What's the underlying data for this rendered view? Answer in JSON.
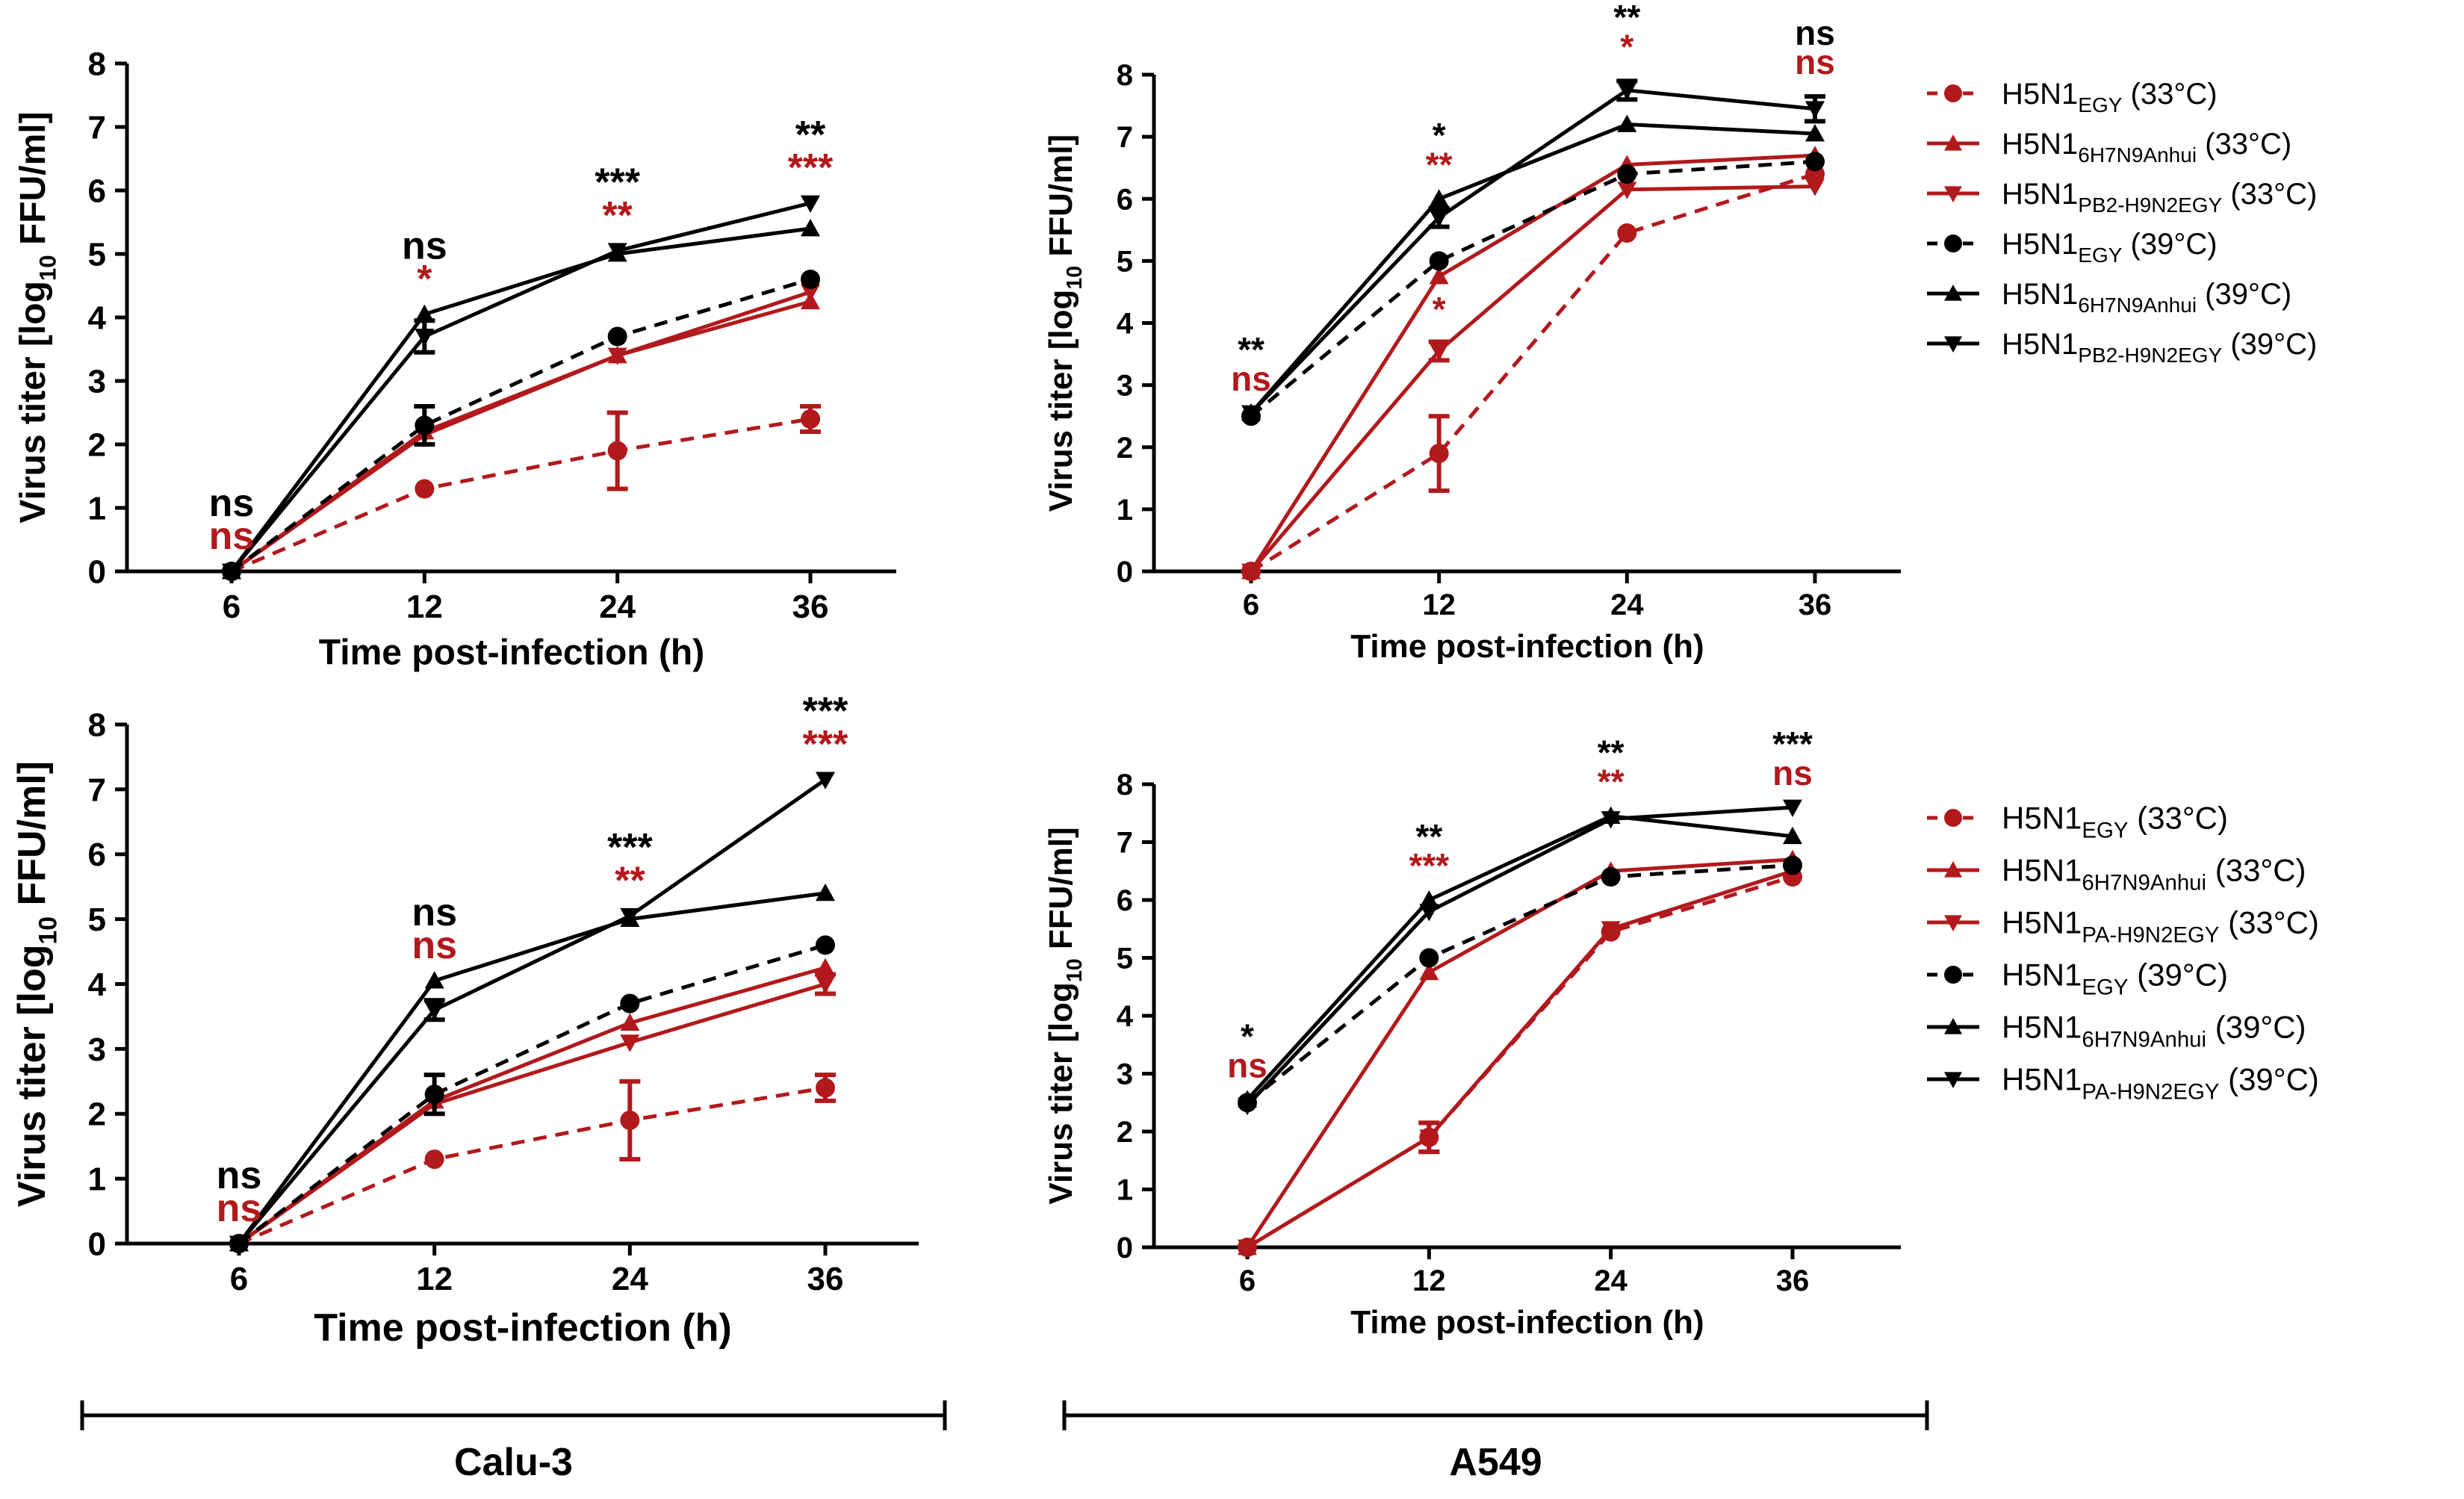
{
  "colors": {
    "red": "#b2191c",
    "black": "#000000"
  },
  "chart_data": [
    {
      "type": "line",
      "name": "Calu-3 PB2",
      "xlabel": "Time post-infection (h)",
      "ylabel_main": "Virus titer [log",
      "ylabel_sub": "10",
      "ylabel_tail": " FFU/ml]",
      "ylim": [
        0,
        8
      ],
      "yticks": [
        "0",
        "1",
        "2",
        "3",
        "4",
        "5",
        "6",
        "7",
        "8"
      ],
      "categories": [
        "6",
        "12",
        "24",
        "36"
      ],
      "series": [
        {
          "name": "H5N1 EGY (33°C)",
          "color": "red",
          "dashed": true,
          "marker": "circle",
          "values": [
            0,
            1.3,
            1.9,
            2.4
          ],
          "err": [
            0,
            0,
            0.6,
            0.2
          ]
        },
        {
          "name": "H5N1 6H7N9Anhui (33°C)",
          "color": "red",
          "dashed": false,
          "marker": "triangle-up",
          "values": [
            0,
            2.2,
            3.4,
            4.25
          ],
          "err": [
            0,
            0,
            0,
            0
          ]
        },
        {
          "name": "H5N1 PB2-H9N2EGY (33°C)",
          "color": "red",
          "dashed": false,
          "marker": "triangle-down",
          "values": [
            0,
            2.15,
            3.4,
            4.4
          ],
          "err": [
            0,
            0,
            0,
            0
          ]
        },
        {
          "name": "H5N1 EGY (39°C)",
          "color": "black",
          "dashed": true,
          "marker": "circle",
          "values": [
            0,
            2.3,
            3.7,
            4.6
          ],
          "err": [
            0,
            0.3,
            0,
            0
          ]
        },
        {
          "name": "H5N1 6H7N9Anhui (39°C)",
          "color": "black",
          "dashed": false,
          "marker": "triangle-up",
          "values": [
            0,
            4.05,
            5.0,
            5.4
          ],
          "err": [
            0,
            0,
            0,
            0
          ]
        },
        {
          "name": "H5N1 PB2-H9N2EGY (39°C)",
          "color": "black",
          "dashed": false,
          "marker": "triangle-down",
          "values": [
            0,
            3.7,
            5.05,
            5.8
          ],
          "err": [
            0,
            0.25,
            0,
            0
          ]
        }
      ],
      "annotations": [
        {
          "x": "6",
          "black": "ns",
          "red": "ns"
        },
        {
          "x": "12",
          "black": "ns",
          "red": "*"
        },
        {
          "x": "24",
          "black": "***",
          "red": "**"
        },
        {
          "x": "36",
          "black": "**",
          "red": "***"
        }
      ]
    },
    {
      "type": "line",
      "name": "A549 PB2",
      "xlabel": "Time post-infection (h)",
      "ylabel_main": "Virus titer [log",
      "ylabel_sub": "10",
      "ylabel_tail": " FFU/ml]",
      "ylim": [
        0,
        8
      ],
      "yticks": [
        "0",
        "1",
        "2",
        "3",
        "4",
        "5",
        "6",
        "7",
        "8"
      ],
      "categories": [
        "6",
        "12",
        "24",
        "36"
      ],
      "series": [
        {
          "name": "H5N1 EGY (33°C)",
          "color": "red",
          "dashed": true,
          "marker": "circle",
          "values": [
            0,
            1.9,
            5.45,
            6.4
          ],
          "err": [
            0,
            0.6,
            0,
            0
          ]
        },
        {
          "name": "H5N1 6H7N9Anhui (33°C)",
          "color": "red",
          "dashed": false,
          "marker": "triangle-up",
          "values": [
            0,
            4.75,
            6.55,
            6.7
          ],
          "err": [
            0,
            0,
            0,
            0
          ]
        },
        {
          "name": "H5N1 PB2-H9N2EGY (33°C)",
          "color": "red",
          "dashed": false,
          "marker": "triangle-down",
          "values": [
            0,
            3.55,
            6.15,
            6.2
          ],
          "err": [
            0,
            0.15,
            0,
            0
          ]
        },
        {
          "name": "H5N1 EGY (39°C)",
          "color": "black",
          "dashed": true,
          "marker": "circle",
          "values": [
            2.5,
            5.0,
            6.4,
            6.6
          ],
          "err": [
            0,
            0,
            0,
            0
          ]
        },
        {
          "name": "H5N1 6H7N9Anhui (39°C)",
          "color": "black",
          "dashed": false,
          "marker": "triangle-up",
          "values": [
            2.55,
            6.0,
            7.2,
            7.05
          ],
          "err": [
            0,
            0,
            0,
            0
          ]
        },
        {
          "name": "H5N1 PB2-H9N2EGY (39°C)",
          "color": "black",
          "dashed": false,
          "marker": "triangle-down",
          "values": [
            2.55,
            5.7,
            7.75,
            7.45
          ],
          "err": [
            0,
            0.15,
            0.15,
            0.2
          ]
        }
      ],
      "annotations": [
        {
          "x": "6",
          "black": "**",
          "red": "ns"
        },
        {
          "x": "12",
          "black": "*",
          "red": "**",
          "red2": "*"
        },
        {
          "x": "24",
          "black": "**",
          "red": "*"
        },
        {
          "x": "36",
          "black": "ns",
          "red": "ns"
        }
      ]
    },
    {
      "type": "line",
      "name": "Calu-3 PA",
      "xlabel": "Time post-infection (h)",
      "ylabel_main": "Virus titer [log",
      "ylabel_sub": "10",
      "ylabel_tail": " FFU/ml]",
      "ylim": [
        0,
        8
      ],
      "yticks": [
        "0",
        "1",
        "2",
        "3",
        "4",
        "5",
        "6",
        "7",
        "8"
      ],
      "categories": [
        "6",
        "12",
        "24",
        "36"
      ],
      "series": [
        {
          "name": "H5N1 EGY (33°C)",
          "color": "red",
          "dashed": true,
          "marker": "circle",
          "values": [
            0,
            1.3,
            1.9,
            2.4
          ],
          "err": [
            0,
            0,
            0.6,
            0.2
          ]
        },
        {
          "name": "H5N1 6H7N9Anhui (33°C)",
          "color": "red",
          "dashed": false,
          "marker": "triangle-up",
          "values": [
            0,
            2.2,
            3.4,
            4.25
          ],
          "err": [
            0,
            0,
            0,
            0
          ]
        },
        {
          "name": "H5N1 PA-H9N2EGY (33°C)",
          "color": "red",
          "dashed": false,
          "marker": "triangle-down",
          "values": [
            0,
            2.15,
            3.1,
            4.0
          ],
          "err": [
            0,
            0,
            0,
            0.15
          ]
        },
        {
          "name": "H5N1 EGY (39°C)",
          "color": "black",
          "dashed": true,
          "marker": "circle",
          "values": [
            0,
            2.3,
            3.7,
            4.6
          ],
          "err": [
            0,
            0.3,
            0,
            0
          ]
        },
        {
          "name": "H5N1 6H7N9Anhui (39°C)",
          "color": "black",
          "dashed": false,
          "marker": "triangle-up",
          "values": [
            0,
            4.05,
            5.0,
            5.4
          ],
          "err": [
            0,
            0,
            0,
            0
          ]
        },
        {
          "name": "H5N1 PA-H9N2EGY (39°C)",
          "color": "black",
          "dashed": false,
          "marker": "triangle-down",
          "values": [
            0,
            3.6,
            5.05,
            7.15
          ],
          "err": [
            0,
            0.15,
            0,
            0
          ]
        }
      ],
      "annotations": [
        {
          "x": "6",
          "black": "ns",
          "red": "ns"
        },
        {
          "x": "12",
          "black": "ns",
          "red": "ns"
        },
        {
          "x": "24",
          "black": "***",
          "red": "**"
        },
        {
          "x": "36",
          "black": "***",
          "red": "***"
        }
      ]
    },
    {
      "type": "line",
      "name": "A549 PA",
      "xlabel": "Time post-infection (h)",
      "ylabel_main": "Virus titer [log",
      "ylabel_sub": "10",
      "ylabel_tail": " FFU/ml]",
      "ylim": [
        0,
        8
      ],
      "yticks": [
        "0",
        "1",
        "2",
        "3",
        "4",
        "5",
        "6",
        "7",
        "8"
      ],
      "categories": [
        "6",
        "12",
        "24",
        "36"
      ],
      "series": [
        {
          "name": "H5N1 EGY (33°C)",
          "color": "red",
          "dashed": true,
          "marker": "circle",
          "values": [
            0,
            1.9,
            5.45,
            6.4
          ],
          "err": [
            0,
            0.25,
            0,
            0
          ]
        },
        {
          "name": "H5N1 6H7N9Anhui (33°C)",
          "color": "red",
          "dashed": false,
          "marker": "triangle-up",
          "values": [
            0,
            4.75,
            6.5,
            6.7
          ],
          "err": [
            0,
            0,
            0,
            0
          ]
        },
        {
          "name": "H5N1 PA-H9N2EGY (33°C)",
          "color": "red",
          "dashed": false,
          "marker": "triangle-down",
          "values": [
            0,
            1.9,
            5.5,
            6.5
          ],
          "err": [
            0,
            0.25,
            0,
            0
          ]
        },
        {
          "name": "H5N1 EGY (39°C)",
          "color": "black",
          "dashed": true,
          "marker": "circle",
          "values": [
            2.5,
            5.0,
            6.4,
            6.6
          ],
          "err": [
            0,
            0,
            0,
            0
          ]
        },
        {
          "name": "H5N1 6H7N9Anhui (39°C)",
          "color": "black",
          "dashed": false,
          "marker": "triangle-up",
          "values": [
            2.55,
            6.0,
            7.45,
            7.1
          ],
          "err": [
            0,
            0,
            0,
            0
          ]
        },
        {
          "name": "H5N1 PA-H9N2EGY (39°C)",
          "color": "black",
          "dashed": false,
          "marker": "triangle-down",
          "values": [
            2.45,
            5.8,
            7.4,
            7.6
          ],
          "err": [
            0,
            0,
            0,
            0
          ]
        }
      ],
      "annotations": [
        {
          "x": "6",
          "black": "*",
          "red": "ns"
        },
        {
          "x": "12",
          "black": "**",
          "red": "***"
        },
        {
          "x": "24",
          "black": "**",
          "red": "**"
        },
        {
          "x": "36",
          "black": "***",
          "red": "ns"
        }
      ]
    }
  ],
  "legends": [
    {
      "items": [
        {
          "base": "H5N1",
          "sub": "EGY",
          "temp": " (33°C)",
          "color": "red",
          "dashed": true,
          "marker": "circle"
        },
        {
          "base": "H5N1",
          "sub": "6H7N9Anhui",
          "temp": " (33°C)",
          "color": "red",
          "dashed": false,
          "marker": "triangle-up"
        },
        {
          "base": "H5N1",
          "sub": "PB2-H9N2EGY",
          "temp": " (33°C)",
          "color": "red",
          "dashed": false,
          "marker": "triangle-down"
        },
        {
          "base": "H5N1",
          "sub": "EGY",
          "temp": " (39°C)",
          "color": "black",
          "dashed": true,
          "marker": "circle"
        },
        {
          "base": "H5N1",
          "sub": "6H7N9Anhui",
          "temp": " (39°C)",
          "color": "black",
          "dashed": false,
          "marker": "triangle-up"
        },
        {
          "base": "H5N1",
          "sub": "PB2-H9N2EGY",
          "temp": " (39°C)",
          "color": "black",
          "dashed": false,
          "marker": "triangle-down"
        }
      ]
    },
    {
      "items": [
        {
          "base": "H5N1",
          "sub": "EGY",
          "temp": " (33°C)",
          "color": "red",
          "dashed": true,
          "marker": "circle"
        },
        {
          "base": "H5N1",
          "sub": "6H7N9Anhui",
          "temp": " (33°C)",
          "color": "red",
          "dashed": false,
          "marker": "triangle-up"
        },
        {
          "base": "H5N1",
          "sub": "PA-H9N2EGY",
          "temp": " (33°C)",
          "color": "red",
          "dashed": false,
          "marker": "triangle-down"
        },
        {
          "base": "H5N1",
          "sub": "EGY",
          "temp": " (39°C)",
          "color": "black",
          "dashed": true,
          "marker": "circle"
        },
        {
          "base": "H5N1",
          "sub": "6H7N9Anhui",
          "temp": " (39°C)",
          "color": "black",
          "dashed": false,
          "marker": "triangle-up"
        },
        {
          "base": "H5N1",
          "sub": "PA-H9N2EGY",
          "temp": " (39°C)",
          "color": "black",
          "dashed": false,
          "marker": "triangle-down"
        }
      ]
    }
  ],
  "cell_labels": [
    "Calu-3",
    "A549"
  ]
}
